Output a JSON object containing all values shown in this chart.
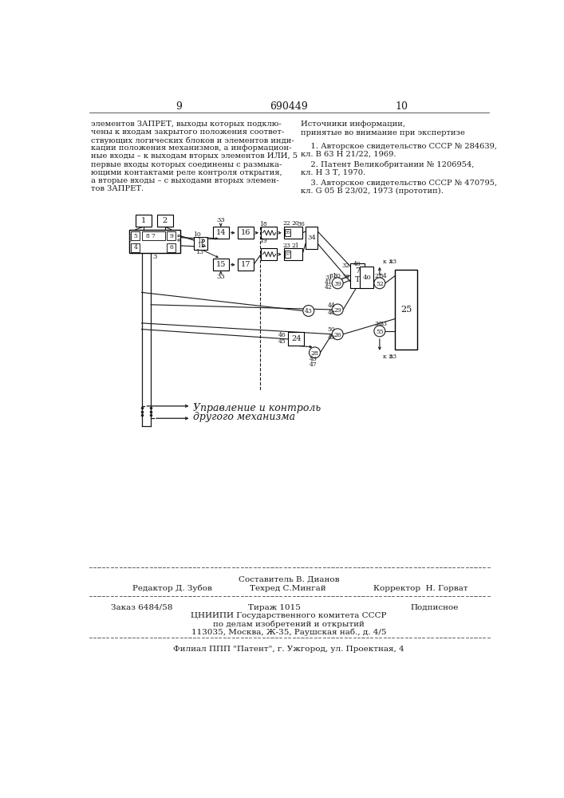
{
  "page_number_left": "9",
  "page_number_center": "690449",
  "page_number_right": "10",
  "left_lines": [
    "элементов ЗАПРЕТ, выходы которых подклю-",
    "чены к входам закрытого положения соответ-",
    "ствующих логических блоков и элементов инди-",
    "кации положения механизмов, а информацион-",
    "ные входы – к выходам вторых элементов ИЛИ, 5",
    "первые входы которых соединены с размыка-",
    "ющими контактами реле контроля открытия,",
    "а вторые входы – с выходами вторых элемен-",
    "тов ЗАПРЕТ."
  ],
  "right_title": "Источники информации,",
  "right_subtitle": "принятые во внимание при экспертизе",
  "refs": [
    [
      "    1. Авторское свидетельство СССР № 284639,",
      "кл. В 63 Н 21/22, 1969."
    ],
    [
      "    2. Патент Великобритании № 1206954,",
      "кл. Н 3 Т, 1970."
    ],
    [
      "    3. Авторское свидетельство СССР № 470795,",
      "кл. G 05 В 23/02, 1973 (прототип)."
    ]
  ],
  "diagram_caption_line1": "Управление и контроль",
  "diagram_caption_line2": "другого механизма",
  "footer_composer": "Составитель В. Дианов",
  "footer_editor": "Редактор Д. Зубов",
  "footer_techred": "Техред С.Мингай",
  "footer_corrector": "Корректор  Н. Горват",
  "footer_order": "Заказ 6484/58",
  "footer_tirazh": "Тираж 1015",
  "footer_podpisnoe": "Подписное",
  "footer_tsniipи": "ЦНИИПИ Государственного комитета СССР",
  "footer_po_delam": "по делам изобретений и открытий",
  "footer_address": "113035, Москва, Ж-35, Раушская наб., д. 4/5",
  "footer_filial": "Филиал ППП \"Патент\", г. Ужгород, ул. Проектная, 4",
  "bg_color": "#ffffff",
  "text_color": "#1a1a1a",
  "diagram_color": "#1a1a1a"
}
